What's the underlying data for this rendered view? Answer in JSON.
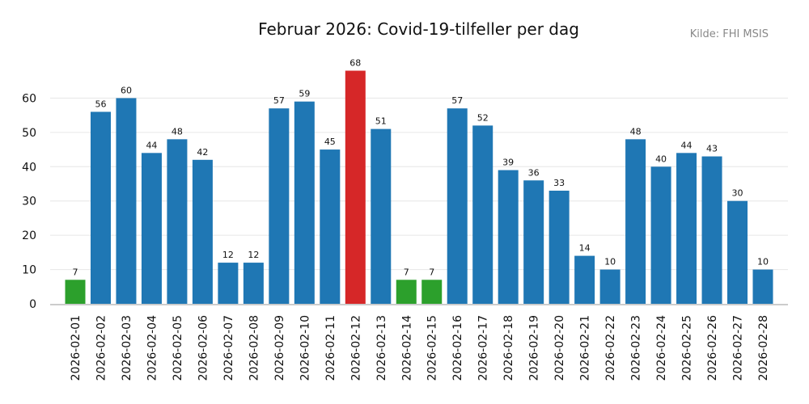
{
  "chart_data": {
    "type": "bar",
    "title": "Februar 2026: Covid-19-tilfeller per dag",
    "source": "Kilde: FHI MSIS",
    "xlabel": "",
    "ylabel": "",
    "ylim": [
      0,
      70
    ],
    "yticks": [
      0,
      10,
      20,
      30,
      40,
      50,
      60
    ],
    "grid": true,
    "categories": [
      "2026-02-01",
      "2026-02-02",
      "2026-02-03",
      "2026-02-04",
      "2026-02-05",
      "2026-02-06",
      "2026-02-07",
      "2026-02-08",
      "2026-02-09",
      "2026-02-10",
      "2026-02-11",
      "2026-02-12",
      "2026-02-13",
      "2026-02-14",
      "2026-02-15",
      "2026-02-16",
      "2026-02-17",
      "2026-02-18",
      "2026-02-19",
      "2026-02-20",
      "2026-02-21",
      "2026-02-22",
      "2026-02-23",
      "2026-02-24",
      "2026-02-25",
      "2026-02-26",
      "2026-02-27",
      "2026-02-28"
    ],
    "values": [
      7,
      56,
      60,
      44,
      48,
      42,
      12,
      12,
      57,
      59,
      45,
      68,
      51,
      7,
      7,
      57,
      52,
      39,
      36,
      33,
      14,
      10,
      48,
      40,
      44,
      43,
      30,
      10
    ],
    "bar_colors": [
      "#2ca02c",
      "#1f77b4",
      "#1f77b4",
      "#1f77b4",
      "#1f77b4",
      "#1f77b4",
      "#1f77b4",
      "#1f77b4",
      "#1f77b4",
      "#1f77b4",
      "#1f77b4",
      "#d62728",
      "#1f77b4",
      "#2ca02c",
      "#2ca02c",
      "#1f77b4",
      "#1f77b4",
      "#1f77b4",
      "#1f77b4",
      "#1f77b4",
      "#1f77b4",
      "#1f77b4",
      "#1f77b4",
      "#1f77b4",
      "#1f77b4",
      "#1f77b4",
      "#1f77b4",
      "#1f77b4"
    ]
  }
}
